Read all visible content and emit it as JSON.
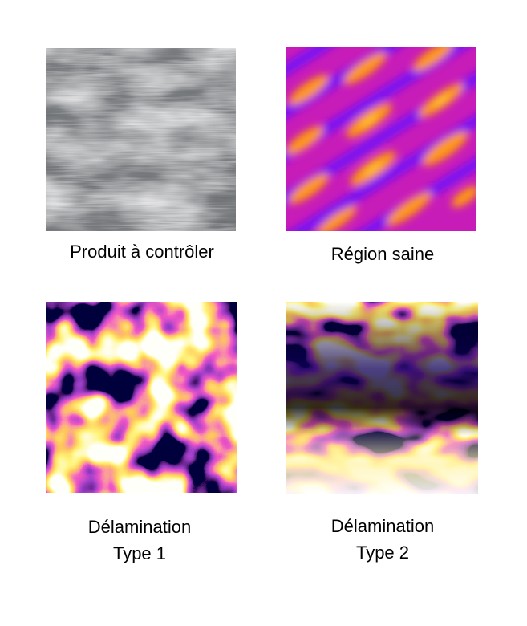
{
  "panels": [
    {
      "caption": [
        "Produit à contrôler"
      ]
    },
    {
      "caption": [
        "Région saine"
      ]
    },
    {
      "caption": [
        "Délamination",
        "Type 1"
      ]
    },
    {
      "caption": [
        "Délamination",
        "Type 2"
      ]
    }
  ]
}
